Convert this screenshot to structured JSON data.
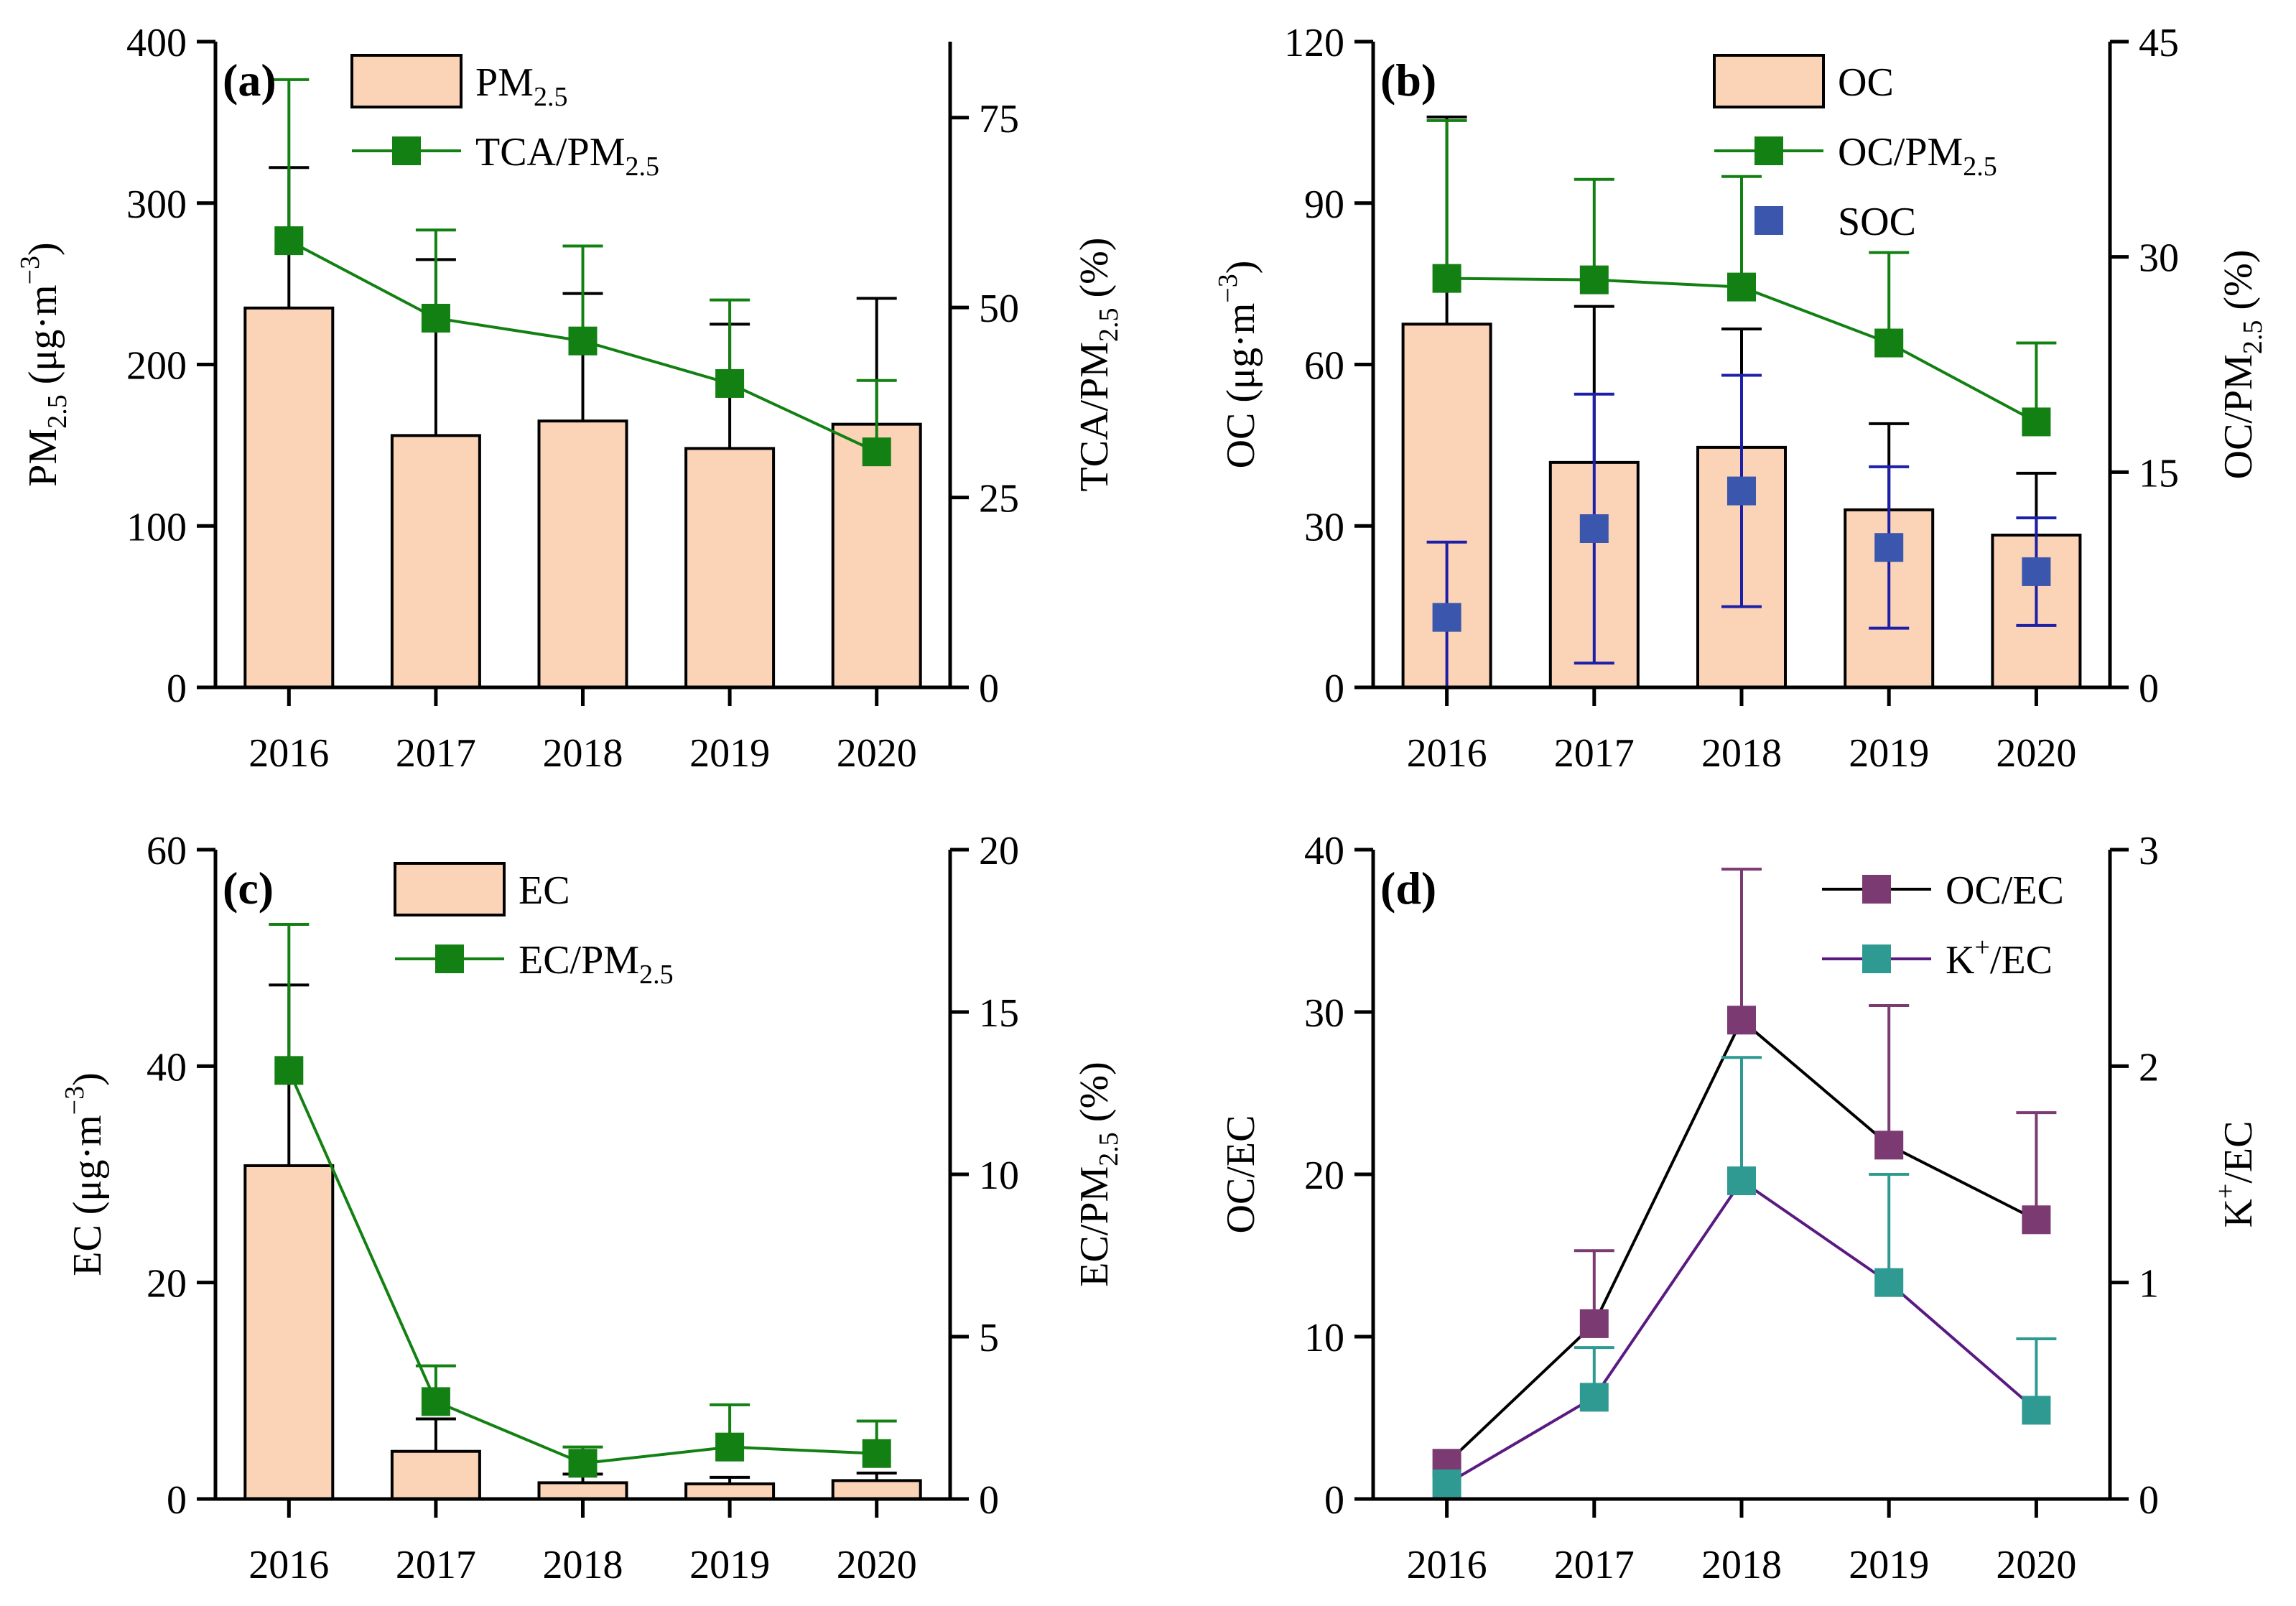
{
  "colors": {
    "bar_fill": "#fbd3b6",
    "bar_edge": "#000000",
    "green": "#128012",
    "blue": "#3a56ad",
    "soc_err": "#1c20a8",
    "purple": "#7b3a72",
    "purple_line": "#5a1a82",
    "teal": "#2e9a92",
    "black": "#000000"
  },
  "chart_data": [
    {
      "id": "a",
      "type": "bar+line",
      "panel_label": "(a)",
      "categories": [
        "2016",
        "2017",
        "2018",
        "2019",
        "2020"
      ],
      "ylabel_left": {
        "base": "PM",
        "sub": "2.5",
        "tail": " (μg·m",
        "sup": "−3",
        "end": ")"
      },
      "ylabel_right": {
        "base": "TCA/PM",
        "sub": "2.5",
        "tail": " (%)"
      },
      "yleft": {
        "min": 0,
        "max": 400,
        "ticks": [
          0,
          100,
          200,
          300,
          400
        ]
      },
      "yright": {
        "min": 0,
        "max": 85,
        "ticks": [
          0,
          25,
          50,
          75
        ]
      },
      "bars": {
        "name": "PM2.5",
        "values": [
          235,
          156,
          165,
          148,
          163
        ],
        "errors": [
          87,
          109,
          79,
          77,
          78
        ]
      },
      "lines": [
        {
          "name": "TCA/PM2.5",
          "axis": "right",
          "values": [
            58.8,
            48.6,
            45.6,
            40.0,
            31.0
          ],
          "errors": [
            21.2,
            11.6,
            12.5,
            11.0,
            9.4
          ],
          "color": "green",
          "marker": "square"
        }
      ],
      "legend": [
        {
          "kind": "bar",
          "base": "PM",
          "sub": "2.5"
        },
        {
          "kind": "line",
          "color": "green",
          "base": "TCA/PM",
          "sub": "2.5"
        }
      ]
    },
    {
      "id": "b",
      "type": "bar+line",
      "panel_label": "(b)",
      "categories": [
        "2016",
        "2017",
        "2018",
        "2019",
        "2020"
      ],
      "ylabel_left": {
        "base": "OC",
        "sub": "",
        "tail": " (μg·m",
        "sup": "−3",
        "end": ")"
      },
      "ylabel_right": {
        "base": "OC/PM",
        "sub": "2.5",
        "tail": " (%)"
      },
      "yleft": {
        "min": 0,
        "max": 120,
        "ticks": [
          0,
          30,
          60,
          90,
          120
        ]
      },
      "yright": {
        "min": 0,
        "max": 45,
        "ticks": [
          0,
          15,
          30,
          45
        ]
      },
      "bars": {
        "name": "OC",
        "values": [
          67.5,
          41.8,
          44.6,
          33.0,
          28.3
        ],
        "errors": [
          38.5,
          29.0,
          22.0,
          16.0,
          11.5
        ]
      },
      "lines": [
        {
          "name": "OC/PM2.5",
          "axis": "right",
          "values": [
            28.5,
            28.4,
            27.9,
            24.0,
            18.5
          ],
          "errors": [
            11.0,
            7.0,
            7.7,
            6.3,
            5.5
          ],
          "color": "green",
          "marker": "square"
        }
      ],
      "points": {
        "name": "SOC",
        "axis": "left",
        "values": [
          13,
          29.5,
          36.5,
          26,
          21.5
        ],
        "errors": [
          14,
          25,
          21.5,
          15,
          10
        ],
        "color": "blue"
      },
      "legend": [
        {
          "kind": "bar",
          "base": "OC",
          "sub": ""
        },
        {
          "kind": "line",
          "color": "green",
          "base": "OC/PM",
          "sub": "2.5"
        },
        {
          "kind": "point",
          "color": "blue",
          "base": "SOC",
          "sub": ""
        }
      ]
    },
    {
      "id": "c",
      "type": "bar+line",
      "panel_label": "(c)",
      "categories": [
        "2016",
        "2017",
        "2018",
        "2019",
        "2020"
      ],
      "ylabel_left": {
        "base": "EC",
        "sub": "",
        "tail": " (μg·m",
        "sup": "−3",
        "end": ")"
      },
      "ylabel_right": {
        "base": "EC/PM",
        "sub": "2.5",
        "tail": " (%)"
      },
      "yleft": {
        "min": 0,
        "max": 60,
        "ticks": [
          0,
          20,
          40,
          60
        ]
      },
      "yright": {
        "min": 0,
        "max": 20,
        "ticks": [
          0,
          5,
          10,
          15,
          20
        ]
      },
      "bars": {
        "name": "EC",
        "values": [
          30.8,
          4.4,
          1.5,
          1.4,
          1.7
        ],
        "errors": [
          16.7,
          3.0,
          0.8,
          0.6,
          0.7
        ]
      },
      "lines": [
        {
          "name": "EC/PM2.5",
          "axis": "right",
          "values": [
            13.2,
            3.0,
            1.1,
            1.6,
            1.4
          ],
          "errors": [
            4.5,
            1.1,
            0.5,
            1.3,
            1.0
          ],
          "color": "green",
          "marker": "square"
        }
      ],
      "legend": [
        {
          "kind": "bar",
          "base": "EC",
          "sub": ""
        },
        {
          "kind": "line",
          "color": "green",
          "base": "EC/PM",
          "sub": "2.5"
        }
      ]
    },
    {
      "id": "d",
      "type": "line",
      "panel_label": "(d)",
      "categories": [
        "2016",
        "2017",
        "2018",
        "2019",
        "2020"
      ],
      "ylabel_left": {
        "base": "OC/EC",
        "sub": "",
        "tail": "",
        "sup": "",
        "end": ""
      },
      "ylabel_right": {
        "base": "K",
        "sup": "+",
        "tail": "/EC"
      },
      "yleft": {
        "min": 0,
        "max": 40,
        "ticks": [
          0,
          10,
          20,
          30,
          40
        ]
      },
      "yright": {
        "min": 0,
        "max": 3,
        "ticks": [
          0,
          1,
          2,
          3
        ]
      },
      "lines": [
        {
          "name": "OC/EC",
          "axis": "left",
          "values": [
            2.2,
            10.8,
            29.5,
            21.8,
            17.2
          ],
          "errors": [
            0,
            4.5,
            9.3,
            8.6,
            6.6
          ],
          "color": "black",
          "marker_color": "purple"
        },
        {
          "name": "K+/EC",
          "axis": "right",
          "values": [
            0.07,
            0.47,
            1.47,
            1.0,
            0.41
          ],
          "errors": [
            0,
            0.23,
            0.57,
            0.5,
            0.33
          ],
          "color": "purple_line",
          "marker_color": "teal"
        }
      ],
      "legend": [
        {
          "kind": "line",
          "color": "black",
          "marker_color": "purple",
          "base": "OC/EC",
          "sub": ""
        },
        {
          "kind": "line",
          "color": "purple_line",
          "marker_color": "teal",
          "base": "K",
          "sup": "+",
          "tail": "/EC"
        }
      ]
    }
  ]
}
